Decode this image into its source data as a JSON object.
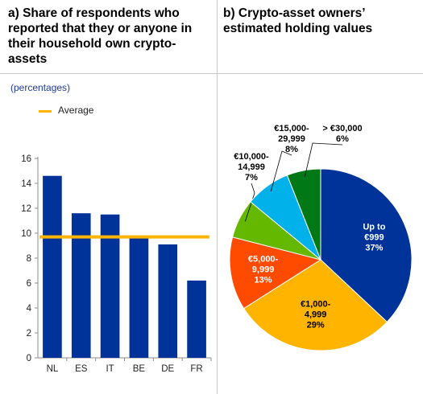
{
  "panel_a": {
    "title": "a) Share of respondents who reported that they or anyone in their household own crypto-assets",
    "unit": "(percentages)",
    "legend_label": "Average"
  },
  "panel_b": {
    "title": "b) Crypto-asset owners’ estimated holding values"
  },
  "chart_data": [
    {
      "type": "bar",
      "categories": [
        "NL",
        "ES",
        "IT",
        "BE",
        "DE",
        "FR"
      ],
      "values": [
        14.6,
        11.6,
        11.5,
        9.7,
        9.1,
        6.2
      ],
      "average": 9.7,
      "ylim": [
        0,
        16
      ],
      "yticks": [
        0,
        2,
        4,
        6,
        8,
        10,
        12,
        14,
        16
      ],
      "bar_color": "#003399",
      "average_color": "#ffb400",
      "grid": false
    },
    {
      "type": "pie",
      "slices": [
        {
          "label_lines": [
            "Up to",
            "€999",
            "37%"
          ],
          "value": 37,
          "color": "#003399",
          "text_color": "#ffffff"
        },
        {
          "label_lines": [
            "€1,000-",
            "4,999",
            "29%"
          ],
          "value": 29,
          "color": "#ffb400",
          "text_color": "#000000"
        },
        {
          "label_lines": [
            "€5,000-",
            "9,999",
            "13%"
          ],
          "value": 13,
          "color": "#ff4b00",
          "text_color": "#ffffff"
        },
        {
          "label_lines": [
            "€10,000-",
            "14,999",
            "7%"
          ],
          "value": 7,
          "color": "#65b800",
          "text_color": "#000000"
        },
        {
          "label_lines": [
            "€15,000-",
            "29,999",
            "8%"
          ],
          "value": 8,
          "color": "#00b1ea",
          "text_color": "#000000"
        },
        {
          "label_lines": [
            "> €30,000",
            "6%"
          ],
          "value": 6,
          "color": "#007816",
          "text_color": "#000000"
        }
      ]
    }
  ]
}
